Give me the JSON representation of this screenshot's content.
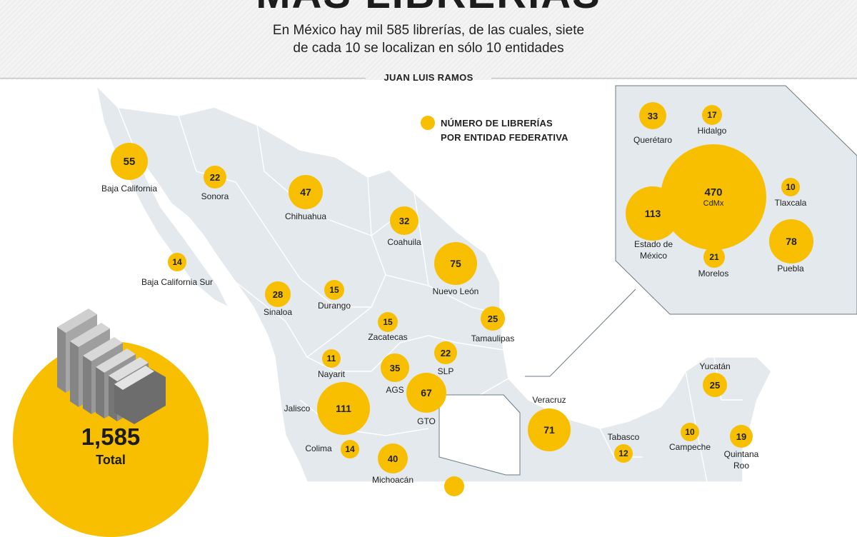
{
  "header": {
    "title": "MÁS LIBRERÍAS",
    "subtitle_line1": "En México hay mil 585 librerías, de las cuales, siete",
    "subtitle_line2": "de cada 10 se localizan en sólo 10 entidades",
    "byline": "JUAN LUIS RAMOS"
  },
  "legend": {
    "line1": "NÚMERO DE LIBRERÍAS",
    "line2": "POR ENTIDAD FEDERATIVA",
    "color": "#f7bf00"
  },
  "total": {
    "value": "1,585",
    "label": "Total"
  },
  "colors": {
    "bubble": "#f7bf00",
    "land": "#e3e9ed",
    "border": "#ffffff",
    "inset_bg": "#e3e9ed"
  },
  "states": {
    "baja_california": {
      "name": "Baja California",
      "value": "55"
    },
    "sonora": {
      "name": "Sonora",
      "value": "22"
    },
    "chihuahua": {
      "name": "Chihuahua",
      "value": "47"
    },
    "coahuila": {
      "name": "Coahuila",
      "value": "32"
    },
    "nuevo_leon": {
      "name": "Nuevo León",
      "value": "75"
    },
    "baja_california_sur": {
      "name": "Baja California Sur",
      "value": "14"
    },
    "sinaloa": {
      "name": "Sinaloa",
      "value": "28"
    },
    "durango": {
      "name": "Durango",
      "value": "15"
    },
    "zacatecas": {
      "name": "Zacatecas",
      "value": "15"
    },
    "tamaulipas": {
      "name": "Tamaulipas",
      "value": "25"
    },
    "nayarit": {
      "name": "Nayarit",
      "value": "11"
    },
    "slp": {
      "name": "SLP",
      "value": "22"
    },
    "ags": {
      "name": "AGS",
      "value": "35"
    },
    "gto": {
      "name": "GTO",
      "value": "67"
    },
    "jalisco": {
      "name": "Jalisco",
      "value": "111"
    },
    "colima": {
      "name": "Colima",
      "value": "14"
    },
    "michoacan": {
      "name": "Michoacán",
      "value": "40"
    },
    "veracruz": {
      "name": "Veracruz",
      "value": "71"
    },
    "tabasco": {
      "name": "Tabasco",
      "value": "12"
    },
    "campeche": {
      "name": "Campeche",
      "value": "10"
    },
    "yucatan": {
      "name": "Yucatán",
      "value": "25"
    },
    "quintana_roo_1": {
      "name": "Quintana",
      "value": "19"
    },
    "quintana_roo_2": {
      "name": "Roo"
    }
  },
  "inset": {
    "queretaro": {
      "name": "Querétaro",
      "value": "33"
    },
    "hidalgo": {
      "name": "Hidalgo",
      "value": "17"
    },
    "cdmx": {
      "name": "CdMx",
      "value": "470"
    },
    "tlaxcala": {
      "name": "Tlaxcala",
      "value": "10"
    },
    "edomex": {
      "name1": "Estado de",
      "name2": "México",
      "value": "113"
    },
    "morelos": {
      "name": "Morelos",
      "value": "21"
    },
    "puebla": {
      "name": "Puebla",
      "value": "78"
    }
  }
}
